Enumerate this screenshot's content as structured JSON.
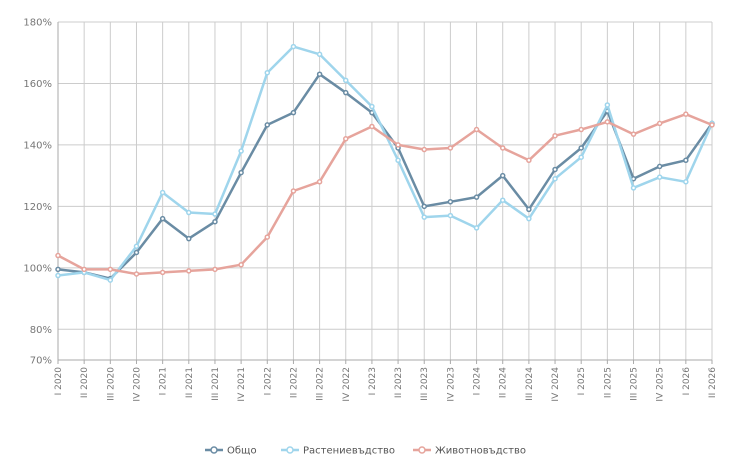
{
  "chart_data": {
    "type": "line",
    "title": "",
    "xlabel": "",
    "ylabel": "",
    "ylim": [
      70,
      180
    ],
    "yticks": [
      70,
      80,
      100,
      120,
      140,
      160,
      180
    ],
    "ytick_labels": [
      "70%",
      "80%",
      "100%",
      "120%",
      "140%",
      "160%",
      "180%"
    ],
    "grid": true,
    "legend_position": "bottom",
    "categories": [
      "I 2020",
      "II 2020",
      "III 2020",
      "IV 2020",
      "I 2021",
      "II 2021",
      "III 2021",
      "IV 2021",
      "I 2022",
      "II 2022",
      "III 2022",
      "IV 2022",
      "I 2023",
      "II 2023",
      "III 2023",
      "IV 2023",
      "I 2024",
      "II 2024",
      "III 2024",
      "IV 2024",
      "I 2025",
      "II 2025",
      "III 2025",
      "IV 2025",
      "I 2026",
      "II 2026"
    ],
    "series": [
      {
        "name": "Общо",
        "color": "#6a8ca4",
        "values": [
          99.5,
          98.5,
          96.5,
          105,
          116,
          109.5,
          115,
          131,
          146.5,
          150.5,
          163,
          157,
          150.5,
          139,
          120,
          121.5,
          123,
          130,
          119,
          132,
          139,
          151,
          129,
          133,
          135,
          147
        ]
      },
      {
        "name": "Растениевъдство",
        "color": "#9fd5ec",
        "values": [
          97.5,
          98.5,
          96,
          107,
          124.5,
          118,
          117.5,
          138,
          163.5,
          172,
          169.5,
          161,
          152.5,
          135,
          116.5,
          117,
          113,
          122,
          116,
          129,
          136,
          153,
          126,
          129.5,
          128,
          147
        ]
      },
      {
        "name": "Животновъдство",
        "color": "#e6a49c",
        "values": [
          104,
          99.5,
          99.5,
          98,
          98.5,
          99,
          99.5,
          101,
          110,
          125,
          128,
          142,
          146,
          140,
          138.5,
          139,
          145,
          139,
          135,
          143,
          145,
          147.5,
          143.5,
          147,
          150,
          146.5
        ]
      }
    ]
  }
}
